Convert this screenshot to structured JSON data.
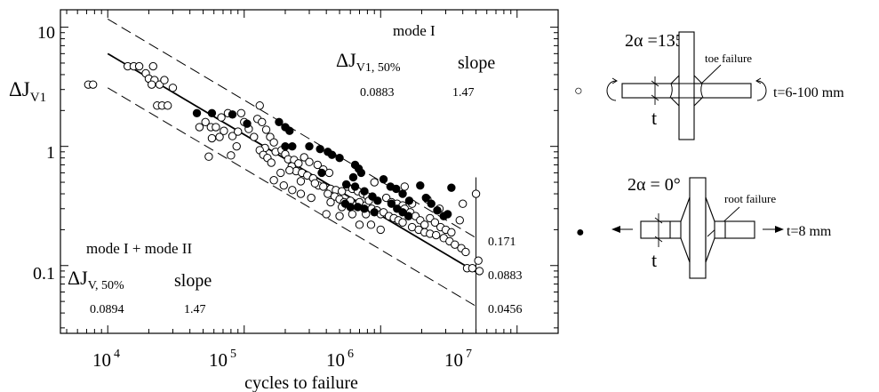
{
  "chart_data": {
    "type": "scatter",
    "xlabel": "cycles to failure",
    "ylabel_main": "ΔJ",
    "ylabel_sub": "V1",
    "xscale": "log",
    "yscale": "log",
    "xlim": [
      4500,
      20000000
    ],
    "ylim": [
      0.027,
      14
    ],
    "x_tick_labels": [
      {
        "value": 10000,
        "base": "10",
        "exp": "4"
      },
      {
        "value": 100000,
        "base": "10",
        "exp": "5"
      },
      {
        "value": 1000000,
        "base": "10",
        "exp": "6"
      },
      {
        "value": 10000000,
        "base": "10",
        "exp": "7"
      }
    ],
    "y_tick_labels": [
      {
        "value": 10,
        "label": "10"
      },
      {
        "value": 1,
        "label": "1"
      },
      {
        "value": 0.1,
        "label": "0.1"
      }
    ],
    "mode_I_box": {
      "title": "mode I",
      "delta_main": "ΔJ",
      "delta_sub": "V1, 50%",
      "slope_label": "slope",
      "value": "0.0883",
      "slope": "1.47"
    },
    "mixed_mode_box": {
      "title": "mode I + mode II",
      "delta_main": "ΔJ",
      "delta_sub": "V, 50%",
      "slope_label": "slope",
      "value": "0.0894",
      "slope": "1.47"
    },
    "scatter_band": {
      "endpoint_cycles": 5000000,
      "labels": [
        "0.171",
        "0.0883",
        "0.0456"
      ]
    },
    "lines": {
      "mean": [
        [
          10000,
          6.0
        ],
        [
          5000000,
          0.0883
        ]
      ],
      "upper": [
        [
          10000,
          11.7
        ],
        [
          5000000,
          0.171
        ]
      ],
      "lower": [
        [
          10000,
          3.1
        ],
        [
          5000000,
          0.0456
        ]
      ]
    },
    "series": [
      {
        "legend": "open circles",
        "marker": "open",
        "points": [
          [
            7200,
            3.3
          ],
          [
            7800,
            3.3
          ],
          [
            14000,
            4.7
          ],
          [
            15500,
            4.7
          ],
          [
            17000,
            4.7
          ],
          [
            19000,
            4.1
          ],
          [
            21500,
            4.7
          ],
          [
            20000,
            3.7
          ],
          [
            22000,
            3.6
          ],
          [
            21000,
            3.3
          ],
          [
            24000,
            3.3
          ],
          [
            26000,
            3.6
          ],
          [
            30000,
            3.1
          ],
          [
            23000,
            2.2
          ],
          [
            25000,
            2.2
          ],
          [
            27500,
            2.2
          ],
          [
            47000,
            1.45
          ],
          [
            52000,
            1.6
          ],
          [
            57000,
            1.45
          ],
          [
            62000,
            1.45
          ],
          [
            68000,
            1.75
          ],
          [
            76000,
            1.9
          ],
          [
            58000,
            1.17
          ],
          [
            66000,
            1.2
          ],
          [
            71000,
            1.35
          ],
          [
            82000,
            1.22
          ],
          [
            90000,
            1.33
          ],
          [
            88000,
            1.0
          ],
          [
            95000,
            1.9
          ],
          [
            100000,
            1.6
          ],
          [
            108000,
            1.4
          ],
          [
            118000,
            1.2
          ],
          [
            130000,
            2.2
          ],
          [
            125000,
            1.7
          ],
          [
            135000,
            1.6
          ],
          [
            145000,
            1.38
          ],
          [
            155000,
            1.2
          ],
          [
            165000,
            1.08
          ],
          [
            142000,
            0.97
          ],
          [
            170000,
            0.9
          ],
          [
            55000,
            0.82
          ],
          [
            80000,
            0.84
          ],
          [
            130000,
            0.93
          ],
          [
            138000,
            0.85
          ],
          [
            148000,
            0.8
          ],
          [
            158000,
            0.73
          ],
          [
            188000,
            0.93
          ],
          [
            200000,
            0.86
          ],
          [
            210000,
            0.78
          ],
          [
            232000,
            0.77
          ],
          [
            250000,
            0.72
          ],
          [
            223000,
            0.68
          ],
          [
            240000,
            0.62
          ],
          [
            265000,
            0.6
          ],
          [
            290000,
            0.57
          ],
          [
            320000,
            0.54
          ],
          [
            275000,
            0.81
          ],
          [
            300000,
            0.74
          ],
          [
            345000,
            0.7
          ],
          [
            380000,
            0.64
          ],
          [
            420000,
            0.6
          ],
          [
            165000,
            0.52
          ],
          [
            195000,
            0.47
          ],
          [
            225000,
            0.43
          ],
          [
            260000,
            0.4
          ],
          [
            310000,
            0.37
          ],
          [
            185000,
            0.6
          ],
          [
            215000,
            0.63
          ],
          [
            260000,
            0.51
          ],
          [
            350000,
            0.47
          ],
          [
            330000,
            0.49
          ],
          [
            380000,
            0.46
          ],
          [
            430000,
            0.44
          ],
          [
            470000,
            0.43
          ],
          [
            520000,
            0.42
          ],
          [
            410000,
            0.4
          ],
          [
            460000,
            0.38
          ],
          [
            500000,
            0.36
          ],
          [
            540000,
            0.34
          ],
          [
            590000,
            0.33
          ],
          [
            640000,
            0.32
          ],
          [
            570000,
            0.46
          ],
          [
            620000,
            0.44
          ],
          [
            680000,
            0.42
          ],
          [
            740000,
            0.4
          ],
          [
            800000,
            0.38
          ],
          [
            700000,
            0.34
          ],
          [
            780000,
            0.32
          ],
          [
            860000,
            0.3
          ],
          [
            940000,
            0.29
          ],
          [
            1000000,
            0.27
          ],
          [
            1050000,
            0.28
          ],
          [
            1150000,
            0.26
          ],
          [
            1250000,
            0.25
          ],
          [
            1350000,
            0.24
          ],
          [
            1450000,
            0.23
          ],
          [
            1100000,
            0.37
          ],
          [
            1200000,
            0.34
          ],
          [
            1320000,
            0.33
          ],
          [
            1450000,
            0.32
          ],
          [
            1500000,
            0.3
          ],
          [
            1650000,
            0.28
          ],
          [
            1800000,
            0.26
          ],
          [
            1950000,
            0.24
          ],
          [
            2100000,
            0.22
          ],
          [
            1700000,
            0.21
          ],
          [
            1900000,
            0.2
          ],
          [
            2100000,
            0.19
          ],
          [
            2300000,
            0.185
          ],
          [
            2550000,
            0.18
          ],
          [
            2300000,
            0.25
          ],
          [
            2500000,
            0.23
          ],
          [
            2750000,
            0.21
          ],
          [
            3000000,
            0.2
          ],
          [
            3300000,
            0.19
          ],
          [
            2900000,
            0.17
          ],
          [
            3200000,
            0.16
          ],
          [
            3500000,
            0.15
          ],
          [
            3900000,
            0.14
          ],
          [
            4200000,
            0.13
          ],
          [
            3800000,
            0.24
          ],
          [
            4000000,
            0.33
          ],
          [
            2200000,
            0.36
          ],
          [
            1500000,
            0.46
          ],
          [
            900000,
            0.5
          ],
          [
            4300000,
            0.095
          ],
          [
            4700000,
            0.095
          ],
          [
            5200000,
            0.11
          ],
          [
            5300000,
            0.09
          ],
          [
            5000000,
            0.4
          ],
          [
            600000,
            0.35
          ],
          [
            820000,
            0.35
          ],
          [
            1700000,
            0.33
          ],
          [
            2700000,
            0.3
          ],
          [
            400000,
            0.27
          ],
          [
            500000,
            0.26
          ],
          [
            620000,
            0.27
          ],
          [
            700000,
            0.22
          ],
          [
            850000,
            0.22
          ],
          [
            1000000,
            0.2
          ],
          [
            430000,
            0.34
          ],
          [
            520000,
            0.31
          ],
          [
            780000,
            0.27
          ]
        ]
      },
      {
        "legend": "filled circles",
        "marker": "filled",
        "points": [
          [
            45000,
            1.9
          ],
          [
            58000,
            1.9
          ],
          [
            82000,
            1.85
          ],
          [
            105000,
            1.55
          ],
          [
            180000,
            1.6
          ],
          [
            200000,
            1.45
          ],
          [
            215000,
            1.35
          ],
          [
            200000,
            1.0
          ],
          [
            225000,
            1.0
          ],
          [
            300000,
            1.0
          ],
          [
            360000,
            0.95
          ],
          [
            410000,
            0.9
          ],
          [
            440000,
            0.85
          ],
          [
            500000,
            0.8
          ],
          [
            650000,
            0.7
          ],
          [
            690000,
            0.65
          ],
          [
            720000,
            0.6
          ],
          [
            630000,
            0.55
          ],
          [
            560000,
            0.48
          ],
          [
            650000,
            0.46
          ],
          [
            760000,
            0.42
          ],
          [
            870000,
            0.38
          ],
          [
            950000,
            0.35
          ],
          [
            550000,
            0.33
          ],
          [
            600000,
            0.31
          ],
          [
            680000,
            0.31
          ],
          [
            760000,
            0.3
          ],
          [
            900000,
            0.28
          ],
          [
            1050000,
            0.53
          ],
          [
            1180000,
            0.46
          ],
          [
            1300000,
            0.44
          ],
          [
            1450000,
            0.4
          ],
          [
            1620000,
            0.35
          ],
          [
            1200000,
            0.33
          ],
          [
            1320000,
            0.3
          ],
          [
            1450000,
            0.28
          ],
          [
            1600000,
            0.26
          ],
          [
            1950000,
            0.47
          ],
          [
            2150000,
            0.37
          ],
          [
            2350000,
            0.33
          ],
          [
            2600000,
            0.29
          ],
          [
            2900000,
            0.26
          ],
          [
            3300000,
            0.45
          ],
          [
            3100000,
            0.27
          ],
          [
            370000,
            0.6
          ]
        ]
      }
    ]
  },
  "inset_top": {
    "angle_label": "2α =135°",
    "failure_label": "toe failure",
    "thickness_label": "t=6-100 mm",
    "t_label": "t"
  },
  "inset_bottom": {
    "angle_label": "2α = 0°",
    "failure_label": "root failure",
    "thickness_label": "t=8 mm",
    "t_label": "t"
  }
}
